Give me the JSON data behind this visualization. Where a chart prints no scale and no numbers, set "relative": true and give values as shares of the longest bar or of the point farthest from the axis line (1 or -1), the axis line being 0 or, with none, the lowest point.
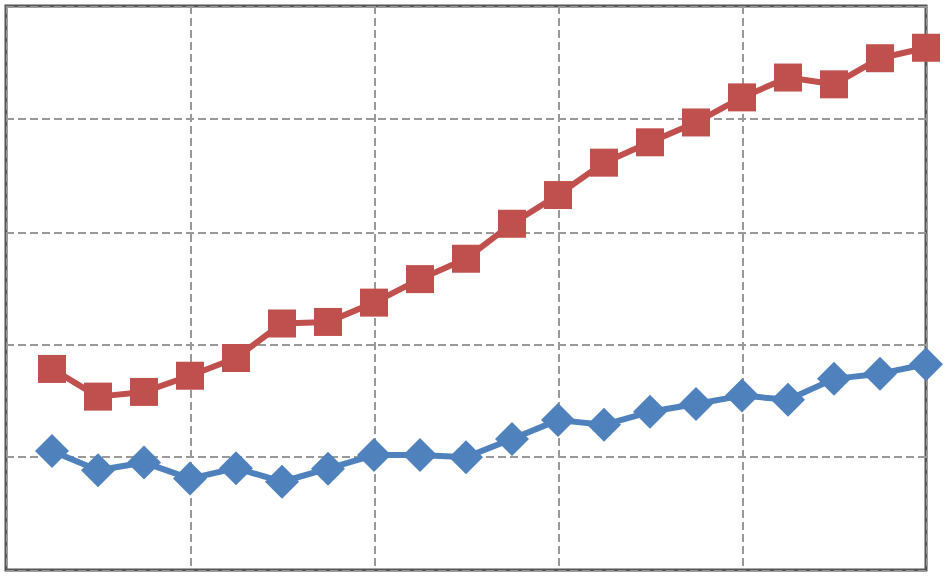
{
  "chart_data": {
    "type": "line",
    "relative": true,
    "grid": true,
    "categories": [
      null,
      null,
      null,
      null,
      null,
      null,
      null,
      null,
      null,
      null,
      null,
      null,
      null,
      null,
      null,
      null,
      null,
      null,
      null,
      null
    ],
    "series": [
      {
        "color": "#c0504d",
        "marker": "square",
        "values": [
          0.385,
          0.332,
          0.341,
          0.372,
          0.406,
          0.472,
          0.475,
          0.512,
          0.557,
          0.596,
          0.663,
          0.718,
          0.78,
          0.819,
          0.857,
          0.905,
          0.943,
          0.93,
          0.98,
          1
        ]
      },
      {
        "color": "#4f81bd",
        "marker": "diamond",
        "values": [
          0.228,
          0.191,
          0.206,
          0.175,
          0.195,
          0.169,
          0.194,
          0.22,
          0.22,
          0.216,
          0.251,
          0.287,
          0.278,
          0.303,
          0.318,
          0.334,
          0.326,
          0.366,
          0.376,
          0.394
        ]
      }
    ]
  }
}
